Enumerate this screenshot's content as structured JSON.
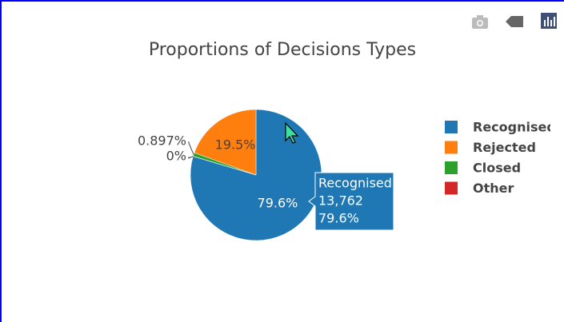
{
  "chart_data": {
    "type": "pie",
    "title": "Proportions of Decisions Types",
    "categories": [
      "Recognised",
      "Rejected",
      "Closed",
      "Other"
    ],
    "values": [
      79.6,
      19.5,
      0.897,
      0
    ],
    "value_labels": [
      "79.6%",
      "19.5%",
      "0.897%",
      "0%"
    ],
    "colors": [
      "#1f77b4",
      "#ff7f0e",
      "#2ca02c",
      "#d62728"
    ],
    "direction": "counterclockwise",
    "legend": "right",
    "tooltip": {
      "index": 0,
      "count": {
        "value": 13762,
        "label": "13,762"
      }
    }
  }
}
